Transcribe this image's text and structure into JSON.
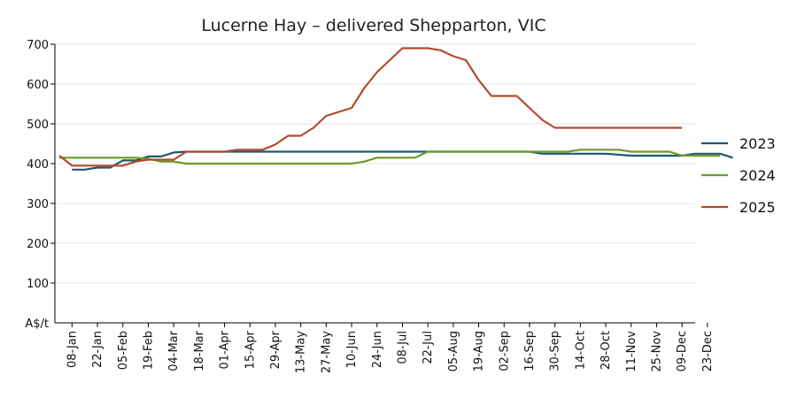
{
  "chart_data": {
    "type": "line",
    "title": "Lucerne Hay – delivered Shepparton, VIC",
    "ylabel": "",
    "xlabel": "",
    "y_unit_label": "A$/t",
    "ylim": [
      0,
      700
    ],
    "yticks": [
      700,
      600,
      500,
      400,
      300,
      200,
      100
    ],
    "grid": true,
    "legend_position": "right",
    "x_tick_labels": [
      "08-Jan",
      "22-Jan",
      "05-Feb",
      "19-Feb",
      "04-Mar",
      "18-Mar",
      "01-Apr",
      "15-Apr",
      "29-Apr",
      "13-May",
      "27-May",
      "10-Jun",
      "24-Jun",
      "08-Jul",
      "22-Jul",
      "05-Aug",
      "19-Aug",
      "02-Sep",
      "16-Sep",
      "30-Sep",
      "14-Oct",
      "28-Oct",
      "11-Nov",
      "25-Nov",
      "09-Dec",
      "23-Dec"
    ],
    "week_range": [
      1,
      52
    ],
    "series": [
      {
        "name": "2023",
        "color": "#1d5a6b",
        "points": [
          [
            1,
            385
          ],
          [
            2,
            385
          ],
          [
            3,
            390
          ],
          [
            4,
            390
          ],
          [
            5,
            408
          ],
          [
            6,
            408
          ],
          [
            7,
            418
          ],
          [
            8,
            418
          ],
          [
            9,
            428
          ],
          [
            10,
            430
          ],
          [
            11,
            430
          ],
          [
            12,
            430
          ],
          [
            16,
            430
          ],
          [
            19,
            430
          ],
          [
            22,
            430
          ],
          [
            25,
            430
          ],
          [
            28,
            430
          ],
          [
            31,
            430
          ],
          [
            34,
            430
          ],
          [
            37,
            430
          ],
          [
            38,
            425
          ],
          [
            41,
            425
          ],
          [
            43,
            425
          ],
          [
            45,
            420
          ],
          [
            48,
            420
          ],
          [
            49,
            420
          ],
          [
            50,
            425
          ],
          [
            52,
            425
          ],
          [
            53,
            415
          ]
        ]
      },
      {
        "name": "2024",
        "color": "#6a9a2a",
        "points": [
          [
            0,
            415
          ],
          [
            2,
            415
          ],
          [
            4,
            415
          ],
          [
            6,
            415
          ],
          [
            7,
            412
          ],
          [
            8,
            405
          ],
          [
            9,
            405
          ],
          [
            10,
            400
          ],
          [
            12,
            400
          ],
          [
            16,
            400
          ],
          [
            20,
            400
          ],
          [
            22,
            400
          ],
          [
            23,
            400
          ],
          [
            24,
            405
          ],
          [
            25,
            415
          ],
          [
            28,
            415
          ],
          [
            29,
            430
          ],
          [
            30,
            430
          ],
          [
            32,
            430
          ],
          [
            38,
            430
          ],
          [
            40,
            430
          ],
          [
            41,
            435
          ],
          [
            44,
            435
          ],
          [
            45,
            430
          ],
          [
            48,
            430
          ],
          [
            49,
            420
          ],
          [
            51,
            420
          ],
          [
            52,
            420
          ]
        ]
      },
      {
        "name": "2025",
        "color": "#b34a2e",
        "points": [
          [
            0,
            420
          ],
          [
            1,
            395
          ],
          [
            2,
            395
          ],
          [
            4,
            395
          ],
          [
            5,
            395
          ],
          [
            6,
            405
          ],
          [
            7,
            410
          ],
          [
            8,
            410
          ],
          [
            9,
            410
          ],
          [
            10,
            430
          ],
          [
            12,
            430
          ],
          [
            13,
            430
          ],
          [
            14,
            435
          ],
          [
            15,
            435
          ],
          [
            16,
            435
          ],
          [
            17,
            448
          ],
          [
            18,
            470
          ],
          [
            19,
            470
          ],
          [
            20,
            490
          ],
          [
            21,
            520
          ],
          [
            22,
            530
          ],
          [
            23,
            540
          ],
          [
            24,
            590
          ],
          [
            25,
            630
          ],
          [
            26,
            660
          ],
          [
            27,
            690
          ],
          [
            29,
            690
          ],
          [
            30,
            685
          ],
          [
            31,
            670
          ],
          [
            32,
            660
          ],
          [
            33,
            610
          ],
          [
            34,
            570
          ],
          [
            35,
            570
          ],
          [
            36,
            570
          ],
          [
            37,
            540
          ],
          [
            38,
            510
          ],
          [
            39,
            490
          ],
          [
            41,
            490
          ],
          [
            44,
            490
          ],
          [
            47,
            490
          ],
          [
            49,
            490
          ]
        ]
      }
    ]
  }
}
